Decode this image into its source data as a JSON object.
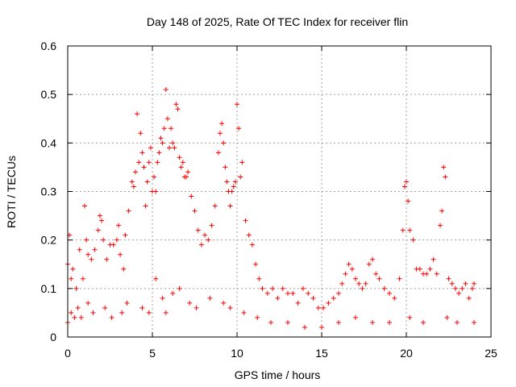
{
  "chart_data": {
    "type": "scatter",
    "title": "Day 148 of 2025, Rate Of TEC Index for receiver flin",
    "xlabel": "GPS time / hours",
    "ylabel": "ROTI / TECUs",
    "xlim": [
      0,
      25
    ],
    "ylim": [
      0,
      0.6
    ],
    "xticks": [
      "0",
      "5",
      "10",
      "15",
      "20",
      "25"
    ],
    "xtick_values": [
      0,
      5,
      10,
      15,
      20,
      25
    ],
    "yticks": [
      "0",
      "0.1",
      "0.2",
      "0.3",
      "0.4",
      "0.5",
      "0.6"
    ],
    "ytick_values": [
      0,
      0.1,
      0.2,
      0.3,
      0.4,
      0.5,
      0.6
    ],
    "grid": true,
    "marker": "+",
    "color": "#ff0000",
    "series": [
      {
        "x": [
          0.0,
          0.1,
          0.2,
          0.3,
          0.5,
          0.7,
          0.9,
          1.0,
          1.1,
          1.2,
          1.4,
          1.6,
          1.8,
          1.9,
          2.0,
          2.1,
          2.3,
          2.5,
          2.7,
          2.9,
          3.0,
          3.1,
          3.3,
          3.4,
          3.6,
          3.8,
          3.9,
          4.0,
          4.1,
          4.2,
          4.3,
          4.4,
          4.5,
          4.6,
          4.7,
          4.8,
          4.9,
          5.0,
          5.1,
          5.2,
          5.3,
          5.4,
          5.5,
          5.6,
          5.7,
          5.8,
          5.9,
          6.0,
          6.1,
          6.2,
          6.3,
          6.4,
          6.5,
          6.6,
          6.7,
          6.8,
          6.9,
          7.0,
          7.1,
          7.3,
          7.5,
          7.7,
          7.9,
          8.1,
          8.3,
          8.5,
          8.7,
          8.9,
          9.0,
          9.1,
          9.2,
          9.3,
          9.4,
          9.5,
          9.6,
          9.7,
          9.8,
          9.9,
          10.0,
          10.1,
          10.2,
          10.3,
          10.5,
          10.7,
          10.9,
          11.1,
          11.3,
          11.5,
          11.8,
          12.1,
          12.4,
          12.7,
          13.0,
          13.3,
          13.6,
          13.9,
          14.2,
          14.5,
          14.8,
          15.1,
          15.4,
          15.7,
          16.0,
          16.2,
          16.4,
          16.6,
          16.8,
          17.0,
          17.2,
          17.4,
          17.6,
          17.8,
          18.0,
          18.2,
          18.4,
          18.7,
          19.0,
          19.3,
          19.6,
          19.8,
          19.9,
          20.0,
          20.1,
          20.2,
          20.4,
          20.6,
          20.8,
          21.0,
          21.2,
          21.4,
          21.6,
          21.8,
          22.0,
          22.1,
          22.2,
          22.3,
          22.5,
          22.7,
          22.9,
          23.1,
          23.3,
          23.5,
          23.7,
          23.9,
          24.0,
          0.0,
          0.2,
          0.4,
          0.6,
          0.8,
          1.2,
          1.5,
          2.2,
          2.6,
          3.2,
          3.5,
          4.4,
          4.8,
          5.2,
          5.6,
          5.8,
          6.2,
          6.6,
          7.2,
          7.6,
          8.4,
          9.2,
          9.6,
          10.4,
          11.2,
          12.0,
          13.0,
          14.0,
          15.0,
          16.0,
          17.0,
          18.0,
          19.0,
          20.2,
          21.0,
          22.4,
          23.0,
          24.0
        ],
        "y": [
          0.15,
          0.21,
          0.12,
          0.14,
          0.1,
          0.18,
          0.12,
          0.27,
          0.2,
          0.17,
          0.16,
          0.18,
          0.22,
          0.25,
          0.24,
          0.2,
          0.16,
          0.19,
          0.19,
          0.2,
          0.23,
          0.17,
          0.14,
          0.21,
          0.26,
          0.32,
          0.31,
          0.34,
          0.46,
          0.36,
          0.42,
          0.38,
          0.35,
          0.27,
          0.32,
          0.36,
          0.39,
          0.3,
          0.33,
          0.3,
          0.36,
          0.38,
          0.41,
          0.4,
          0.43,
          0.51,
          0.45,
          0.39,
          0.43,
          0.4,
          0.39,
          0.48,
          0.47,
          0.37,
          0.35,
          0.36,
          0.33,
          0.33,
          0.34,
          0.29,
          0.26,
          0.22,
          0.19,
          0.21,
          0.2,
          0.23,
          0.27,
          0.38,
          0.42,
          0.44,
          0.4,
          0.35,
          0.32,
          0.3,
          0.27,
          0.3,
          0.31,
          0.32,
          0.48,
          0.43,
          0.33,
          0.36,
          0.24,
          0.21,
          0.19,
          0.15,
          0.12,
          0.1,
          0.09,
          0.1,
          0.08,
          0.1,
          0.09,
          0.09,
          0.07,
          0.1,
          0.09,
          0.08,
          0.06,
          0.06,
          0.07,
          0.08,
          0.09,
          0.11,
          0.13,
          0.15,
          0.14,
          0.12,
          0.11,
          0.1,
          0.11,
          0.15,
          0.16,
          0.13,
          0.12,
          0.1,
          0.09,
          0.08,
          0.12,
          0.22,
          0.31,
          0.32,
          0.28,
          0.22,
          0.2,
          0.14,
          0.14,
          0.13,
          0.13,
          0.14,
          0.16,
          0.13,
          0.23,
          0.26,
          0.35,
          0.33,
          0.12,
          0.11,
          0.1,
          0.09,
          0.1,
          0.11,
          0.08,
          0.1,
          0.11,
          0.03,
          0.05,
          0.04,
          0.06,
          0.04,
          0.07,
          0.05,
          0.06,
          0.04,
          0.05,
          0.07,
          0.06,
          0.05,
          0.12,
          0.08,
          0.05,
          0.09,
          0.1,
          0.07,
          0.06,
          0.08,
          0.07,
          0.06,
          0.05,
          0.04,
          0.03,
          0.03,
          0.02,
          0.02,
          0.03,
          0.04,
          0.03,
          0.03,
          0.04,
          0.03,
          0.04,
          0.03,
          0.03
        ]
      }
    ]
  }
}
